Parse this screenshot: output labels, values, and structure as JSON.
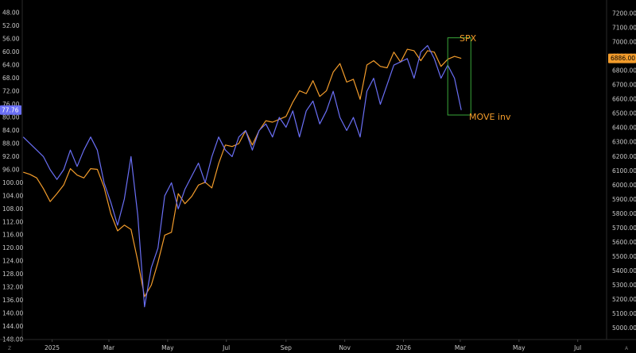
{
  "corner_left": "Z",
  "corner_right": "A",
  "chart_data": {
    "type": "line",
    "grid": false,
    "x_range": [
      "2024-12-01",
      "2026-07-31"
    ],
    "x_ticks": [
      {
        "date": "2025-01-01",
        "label": "2025"
      },
      {
        "date": "2025-03-01",
        "label": "Mar"
      },
      {
        "date": "2025-05-01",
        "label": "May"
      },
      {
        "date": "2025-07-01",
        "label": "Jul"
      },
      {
        "date": "2025-09-01",
        "label": "Sep"
      },
      {
        "date": "2025-11-01",
        "label": "Nov"
      },
      {
        "date": "2026-01-01",
        "label": "2026"
      },
      {
        "date": "2026-03-01",
        "label": "Mar"
      },
      {
        "date": "2026-05-01",
        "label": "May"
      },
      {
        "date": "2026-07-01",
        "label": "Jul"
      }
    ],
    "left_axis": {
      "inverted": true,
      "range": [
        148,
        46
      ],
      "ticks": [
        "48.00",
        "52.00",
        "56.00",
        "60.00",
        "64.00",
        "68.00",
        "72.00",
        "76.00",
        "80.00",
        "84.00",
        "88.00",
        "92.00",
        "96.00",
        "100.00",
        "104.00",
        "108.00",
        "112.00",
        "116.00",
        "120.00",
        "124.00",
        "128.00",
        "132.00",
        "136.00",
        "140.00",
        "144.00",
        "148.00"
      ],
      "last_value_label": "77.76"
    },
    "right_axis": {
      "range": [
        4920,
        7250
      ],
      "ticks": [
        "5000.00",
        "5100.00",
        "5200.00",
        "5300.00",
        "5400.00",
        "5500.00",
        "5600.00",
        "5700.00",
        "5800.00",
        "5900.00",
        "6000.00",
        "6100.00",
        "6200.00",
        "6300.00",
        "6400.00",
        "6500.00",
        "6600.00",
        "6700.00",
        "6800.00",
        "6900.00",
        "7000.00",
        "7100.00",
        "7200.00"
      ],
      "last_value_label": "6886.00"
    },
    "series": [
      {
        "name": "SPX",
        "axis": "right",
        "color": "#f39c2b",
        "points": [
          [
            "2024-12-02",
            6090
          ],
          [
            "2024-12-09",
            6075
          ],
          [
            "2024-12-16",
            6050
          ],
          [
            "2024-12-23",
            5975
          ],
          [
            "2024-12-30",
            5885
          ],
          [
            "2025-01-06",
            5940
          ],
          [
            "2025-01-13",
            6000
          ],
          [
            "2025-01-20",
            6115
          ],
          [
            "2025-01-27",
            6070
          ],
          [
            "2025-02-03",
            6050
          ],
          [
            "2025-02-10",
            6115
          ],
          [
            "2025-02-17",
            6110
          ],
          [
            "2025-02-24",
            5985
          ],
          [
            "2025-03-03",
            5800
          ],
          [
            "2025-03-10",
            5680
          ],
          [
            "2025-03-17",
            5720
          ],
          [
            "2025-03-24",
            5690
          ],
          [
            "2025-03-31",
            5470
          ],
          [
            "2025-04-07",
            5220
          ],
          [
            "2025-04-14",
            5300
          ],
          [
            "2025-04-21",
            5460
          ],
          [
            "2025-04-28",
            5650
          ],
          [
            "2025-05-05",
            5670
          ],
          [
            "2025-05-12",
            5940
          ],
          [
            "2025-05-19",
            5870
          ],
          [
            "2025-05-26",
            5920
          ],
          [
            "2025-06-02",
            6000
          ],
          [
            "2025-06-09",
            6020
          ],
          [
            "2025-06-16",
            5980
          ],
          [
            "2025-06-23",
            6150
          ],
          [
            "2025-06-30",
            6280
          ],
          [
            "2025-07-07",
            6270
          ],
          [
            "2025-07-14",
            6290
          ],
          [
            "2025-07-21",
            6380
          ],
          [
            "2025-07-28",
            6280
          ],
          [
            "2025-08-04",
            6380
          ],
          [
            "2025-08-11",
            6450
          ],
          [
            "2025-08-18",
            6440
          ],
          [
            "2025-08-25",
            6460
          ],
          [
            "2025-09-01",
            6480
          ],
          [
            "2025-09-08",
            6580
          ],
          [
            "2025-09-15",
            6660
          ],
          [
            "2025-09-22",
            6640
          ],
          [
            "2025-09-29",
            6730
          ],
          [
            "2025-10-06",
            6620
          ],
          [
            "2025-10-13",
            6660
          ],
          [
            "2025-10-20",
            6790
          ],
          [
            "2025-10-27",
            6850
          ],
          [
            "2025-11-03",
            6720
          ],
          [
            "2025-11-10",
            6740
          ],
          [
            "2025-11-17",
            6600
          ],
          [
            "2025-11-24",
            6840
          ],
          [
            "2025-12-01",
            6870
          ],
          [
            "2025-12-08",
            6830
          ],
          [
            "2025-12-15",
            6820
          ],
          [
            "2025-12-22",
            6930
          ],
          [
            "2025-12-29",
            6860
          ],
          [
            "2026-01-05",
            6950
          ],
          [
            "2026-01-12",
            6940
          ],
          [
            "2026-01-19",
            6870
          ],
          [
            "2026-01-26",
            6940
          ],
          [
            "2026-02-02",
            6930
          ],
          [
            "2026-02-09",
            6830
          ],
          [
            "2026-02-16",
            6880
          ],
          [
            "2026-02-23",
            6900
          ],
          [
            "2026-03-02",
            6886
          ]
        ]
      },
      {
        "name": "MOVE inv",
        "axis": "left",
        "color": "#6a6ff5",
        "points": [
          [
            "2024-12-02",
            86
          ],
          [
            "2024-12-09",
            88
          ],
          [
            "2024-12-16",
            90
          ],
          [
            "2024-12-23",
            92
          ],
          [
            "2024-12-30",
            96
          ],
          [
            "2025-01-06",
            99
          ],
          [
            "2025-01-13",
            96
          ],
          [
            "2025-01-20",
            90
          ],
          [
            "2025-01-27",
            95
          ],
          [
            "2025-02-03",
            90
          ],
          [
            "2025-02-10",
            86
          ],
          [
            "2025-02-17",
            90
          ],
          [
            "2025-02-24",
            100
          ],
          [
            "2025-03-03",
            106
          ],
          [
            "2025-03-10",
            113
          ],
          [
            "2025-03-17",
            105
          ],
          [
            "2025-03-24",
            92
          ],
          [
            "2025-03-31",
            110
          ],
          [
            "2025-04-07",
            138
          ],
          [
            "2025-04-14",
            126
          ],
          [
            "2025-04-21",
            120
          ],
          [
            "2025-04-28",
            104
          ],
          [
            "2025-05-05",
            100
          ],
          [
            "2025-05-12",
            108
          ],
          [
            "2025-05-19",
            102
          ],
          [
            "2025-05-26",
            98
          ],
          [
            "2025-06-02",
            94
          ],
          [
            "2025-06-09",
            100
          ],
          [
            "2025-06-16",
            92
          ],
          [
            "2025-06-23",
            86
          ],
          [
            "2025-06-30",
            90
          ],
          [
            "2025-07-07",
            92
          ],
          [
            "2025-07-14",
            86
          ],
          [
            "2025-07-21",
            84
          ],
          [
            "2025-07-28",
            90
          ],
          [
            "2025-08-04",
            84
          ],
          [
            "2025-08-11",
            82
          ],
          [
            "2025-08-18",
            86
          ],
          [
            "2025-08-25",
            80
          ],
          [
            "2025-09-01",
            83
          ],
          [
            "2025-09-08",
            78
          ],
          [
            "2025-09-15",
            86
          ],
          [
            "2025-09-22",
            78
          ],
          [
            "2025-09-29",
            75
          ],
          [
            "2025-10-06",
            82
          ],
          [
            "2025-10-13",
            78
          ],
          [
            "2025-10-20",
            72
          ],
          [
            "2025-10-27",
            80
          ],
          [
            "2025-11-03",
            84
          ],
          [
            "2025-11-10",
            80
          ],
          [
            "2025-11-17",
            86
          ],
          [
            "2025-11-24",
            72
          ],
          [
            "2025-12-01",
            68
          ],
          [
            "2025-12-08",
            76
          ],
          [
            "2025-12-15",
            70
          ],
          [
            "2025-12-22",
            64
          ],
          [
            "2026-01-05",
            62
          ],
          [
            "2026-01-12",
            68
          ],
          [
            "2026-01-19",
            60
          ],
          [
            "2026-01-26",
            58
          ],
          [
            "2026-02-02",
            62
          ],
          [
            "2026-02-09",
            68
          ],
          [
            "2026-02-16",
            64
          ],
          [
            "2026-02-23",
            68
          ],
          [
            "2026-03-02",
            77.76
          ]
        ]
      }
    ],
    "annotations": [
      {
        "text": "SPX",
        "color": "#f39c2b"
      },
      {
        "text": "MOVE inv",
        "color": "#f39c2b"
      }
    ],
    "highlight_box": {
      "x_from": "2026-02-16",
      "x_to": "2026-03-12",
      "spx_top": 7030,
      "spx_bottom": 6490,
      "color": "#3aa83a"
    }
  }
}
